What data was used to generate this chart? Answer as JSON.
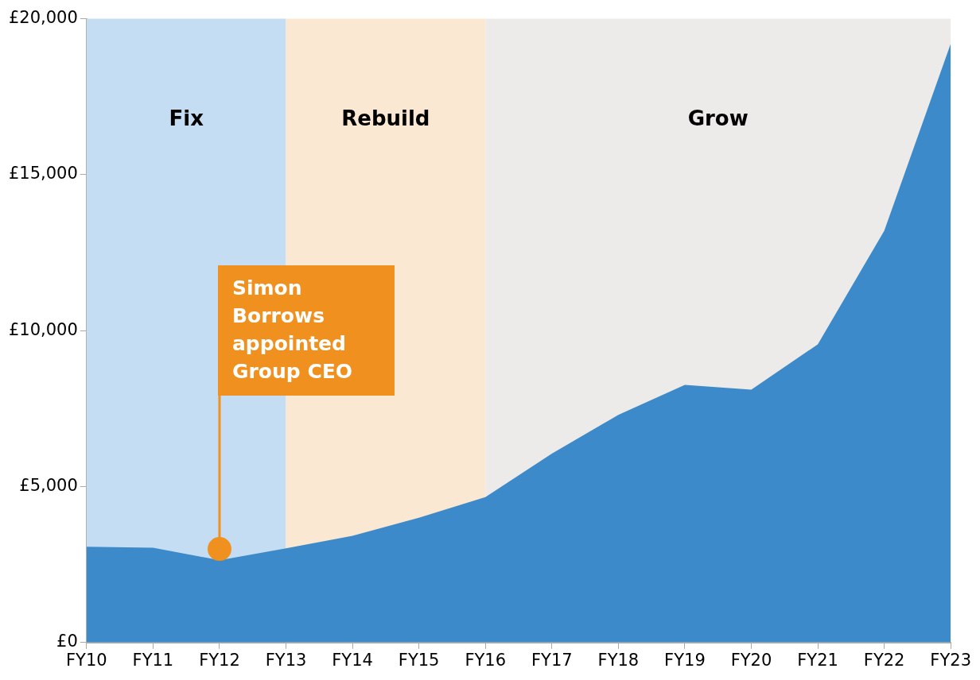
{
  "chart_data": {
    "type": "area",
    "categories": [
      "FY10",
      "FY11",
      "FY12",
      "FY13",
      "FY14",
      "FY15",
      "FY16",
      "FY17",
      "FY18",
      "FY19",
      "FY20",
      "FY21",
      "FY22",
      "FY23"
    ],
    "series": [
      {
        "color": "#3c8ac9",
        "values": [
          3070,
          3040,
          2640,
          3020,
          3420,
          4000,
          4660,
          6060,
          7300,
          8260,
          8110,
          9560,
          13200,
          19200
        ]
      }
    ],
    "ylim": [
      0,
      20000
    ],
    "yticks": [
      {
        "value": 0,
        "label": "£0"
      },
      {
        "value": 5000,
        "label": "£5,000"
      },
      {
        "value": 10000,
        "label": "£10,000"
      },
      {
        "value": 15000,
        "label": "£15,000"
      },
      {
        "value": 20000,
        "label": "£20,000"
      }
    ],
    "bands": [
      {
        "axis": "x",
        "from": "FY10",
        "to": "FY13",
        "label": "Fix",
        "color": "#c5ddf2"
      },
      {
        "axis": "x",
        "from": "FY13",
        "to": "FY16",
        "label": "Rebuild",
        "color": "#fbe8d2"
      },
      {
        "axis": "x",
        "from": "FY16",
        "to": "FY23",
        "label": "Grow",
        "color": "#edebe9"
      }
    ],
    "annotations": [
      {
        "text": "Simon Borrows appointed Group CEO",
        "x": "FY12",
        "y": 3000
      }
    ],
    "grid": false,
    "legend": false
  }
}
